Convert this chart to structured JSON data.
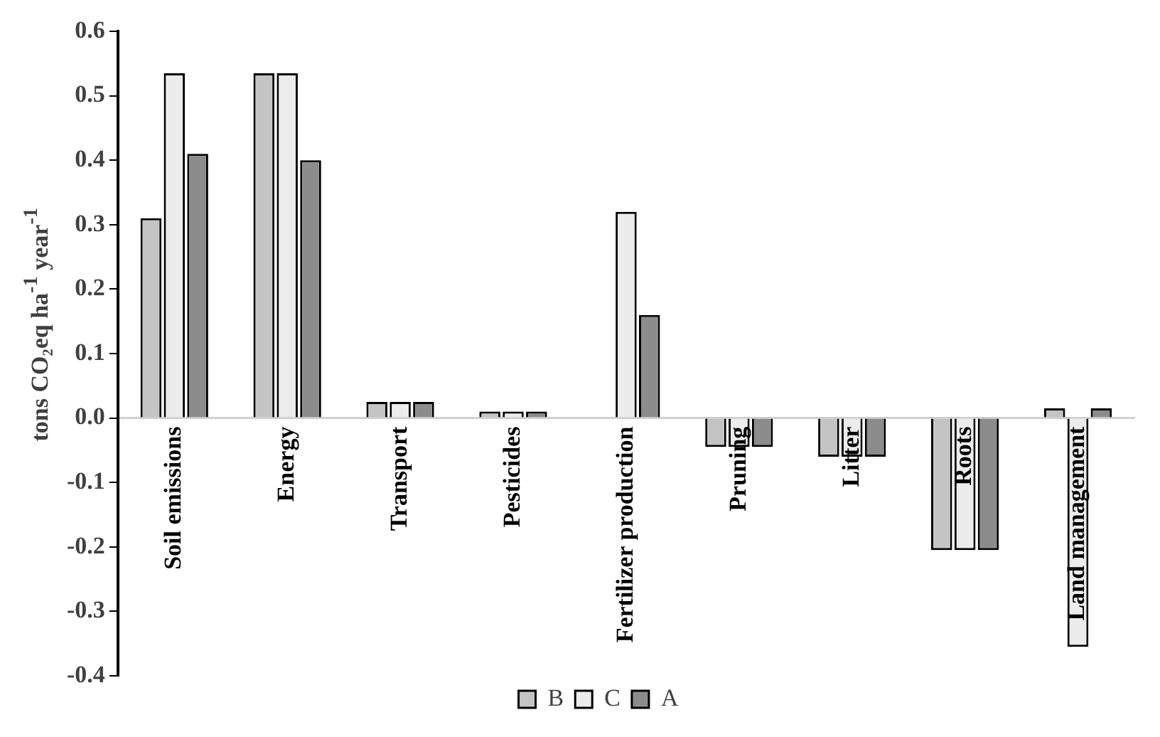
{
  "chart_data": {
    "type": "bar",
    "ylabel": "tons CO₂eq ha$^{-1}$ year$^{-1}$",
    "categories": [
      "Soil emissions",
      "Energy",
      "Transport",
      "Pesticides",
      "Fertilizer production",
      "Pruning",
      "Litter",
      "Roots",
      "Land management"
    ],
    "series": [
      {
        "name": "B",
        "color": "#c4c4c4",
        "values": [
          0.31,
          0.535,
          0.025,
          0.01,
          0,
          -0.045,
          -0.06,
          -0.205,
          0.015
        ]
      },
      {
        "name": "C",
        "color": "#ececec",
        "values": [
          0.535,
          0.535,
          0.025,
          0.01,
          0.32,
          -0.045,
          -0.06,
          -0.205,
          -0.355
        ]
      },
      {
        "name": "A",
        "color": "#8c8c8c",
        "values": [
          0.41,
          0.4,
          0.025,
          0.01,
          0.16,
          -0.045,
          -0.06,
          -0.205,
          0.015
        ]
      }
    ],
    "ylim": [
      -0.4,
      0.6
    ],
    "yticks": [
      -0.4,
      -0.3,
      -0.2,
      -0.1,
      {
        "value": 0,
        "label": "0.0"
      },
      0.1,
      0.2,
      0.3,
      0.4,
      0.5,
      0.6
    ],
    "grid": false,
    "legend": "bottom"
  }
}
